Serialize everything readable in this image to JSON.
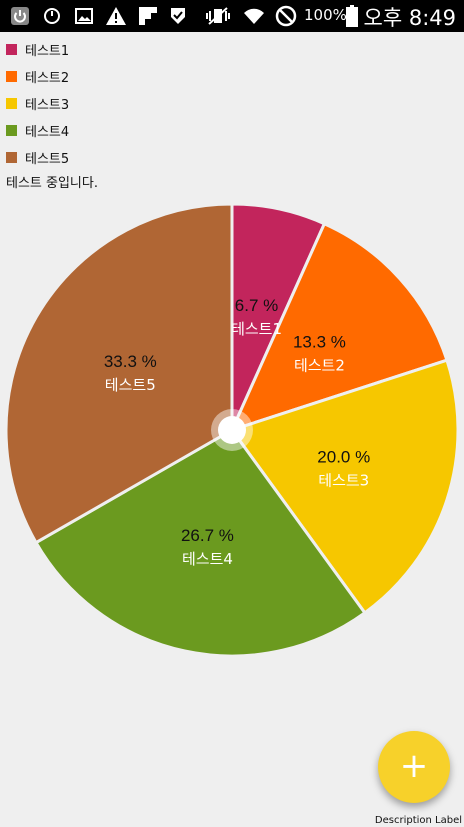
{
  "status_bar": {
    "battery_percent": "100%",
    "ampm": "오후",
    "time": "8:49",
    "icons": [
      "power-icon",
      "sync-icon",
      "image-icon",
      "warning-icon",
      "flipboard-icon",
      "shield-check-icon",
      "vibrate-icon",
      "wifi-icon",
      "block-icon",
      "battery-icon"
    ]
  },
  "legend": [
    {
      "label": "테스트1",
      "color": "#c2255c"
    },
    {
      "label": "테스트2",
      "color": "#ff6a00"
    },
    {
      "label": "테스트3",
      "color": "#f6c700"
    },
    {
      "label": "테스트4",
      "color": "#6b9a1f"
    },
    {
      "label": "테스트5",
      "color": "#b06634"
    }
  ],
  "description_text": "테스트 중입니다.",
  "chart_data": {
    "type": "pie",
    "hole": true,
    "slices": [
      {
        "label": "테스트1",
        "value": 6.7,
        "percent_label": "6.7 %",
        "color": "#c2255c"
      },
      {
        "label": "테스트2",
        "value": 13.3,
        "percent_label": "13.3 %",
        "color": "#ff6a00"
      },
      {
        "label": "테스트3",
        "value": 20.0,
        "percent_label": "20.0 %",
        "color": "#f6c700"
      },
      {
        "label": "테스트4",
        "value": 26.7,
        "percent_label": "26.7 %",
        "color": "#6b9a1f"
      },
      {
        "label": "테스트5",
        "value": 33.3,
        "percent_label": "33.3 %",
        "color": "#b06634"
      }
    ]
  },
  "fab": {
    "icon": "plus-icon",
    "symbol": "+"
  },
  "description_label": "Description Label"
}
